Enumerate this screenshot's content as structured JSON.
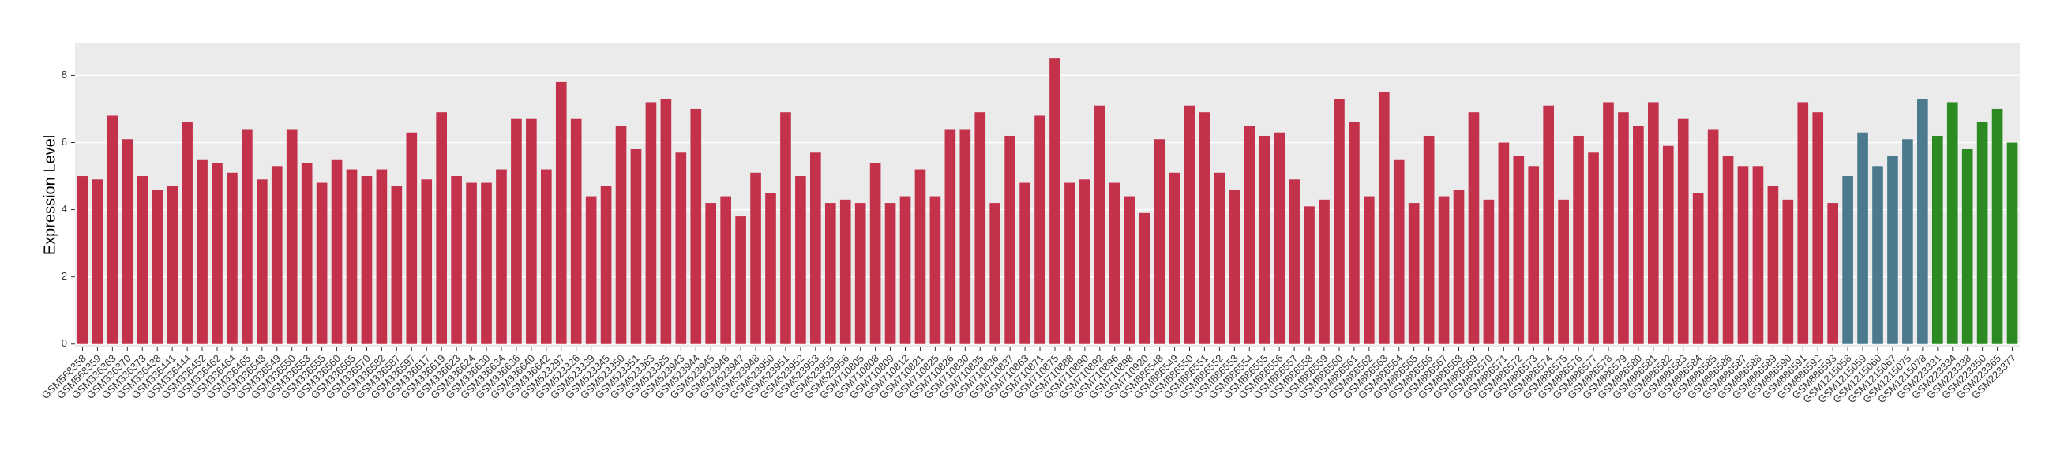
{
  "chart_data": {
    "type": "bar",
    "y_label": "Expression Level",
    "categories": [
      "GSM568358",
      "GSM568359",
      "GSM336363",
      "GSM336370",
      "GSM336373",
      "GSM336438",
      "GSM336441",
      "GSM336444",
      "GSM336452",
      "GSM336462",
      "GSM336464",
      "GSM336465",
      "GSM336548",
      "GSM336549",
      "GSM336550",
      "GSM336553",
      "GSM336555",
      "GSM336560",
      "GSM336565",
      "GSM336570",
      "GSM336582",
      "GSM336587",
      "GSM336597",
      "GSM336617",
      "GSM336619",
      "GSM336623",
      "GSM336624",
      "GSM336630",
      "GSM336634",
      "GSM336636",
      "GSM336640",
      "GSM336642",
      "GSM523297",
      "GSM523326",
      "GSM523339",
      "GSM523345",
      "GSM523350",
      "GSM523351",
      "GSM523363",
      "GSM523385",
      "GSM523943",
      "GSM523944",
      "GSM523945",
      "GSM523946",
      "GSM523947",
      "GSM523948",
      "GSM523950",
      "GSM523951",
      "GSM523952",
      "GSM523953",
      "GSM523955",
      "GSM523956",
      "GSM710805",
      "GSM710808",
      "GSM710809",
      "GSM710812",
      "GSM710821",
      "GSM710825",
      "GSM710826",
      "GSM710830",
      "GSM710835",
      "GSM710836",
      "GSM710837",
      "GSM710863",
      "GSM710871",
      "GSM710875",
      "GSM710888",
      "GSM710890",
      "GSM710892",
      "GSM710896",
      "GSM710898",
      "GSM710920",
      "GSM886548",
      "GSM886549",
      "GSM886550",
      "GSM886551",
      "GSM886552",
      "GSM886553",
      "GSM886554",
      "GSM886555",
      "GSM886556",
      "GSM886557",
      "GSM886558",
      "GSM886559",
      "GSM886560",
      "GSM886561",
      "GSM886562",
      "GSM886563",
      "GSM886564",
      "GSM886565",
      "GSM886566",
      "GSM886567",
      "GSM886568",
      "GSM886569",
      "GSM886570",
      "GSM886571",
      "GSM886572",
      "GSM886573",
      "GSM886574",
      "GSM886575",
      "GSM886576",
      "GSM886577",
      "GSM886578",
      "GSM886579",
      "GSM886580",
      "GSM886581",
      "GSM886582",
      "GSM886583",
      "GSM886584",
      "GSM886585",
      "GSM886586",
      "GSM886587",
      "GSM886588",
      "GSM886589",
      "GSM886590",
      "GSM886591",
      "GSM886592",
      "GSM886593",
      "GSM1215058",
      "GSM1215059",
      "GSM1215060",
      "GSM1215067",
      "GSM1215075",
      "GSM1215078",
      "GSM223331",
      "GSM223334",
      "GSM223338",
      "GSM223350",
      "GSM223365",
      "GSM223377"
    ],
    "values": [
      5.0,
      4.9,
      6.8,
      6.1,
      5.0,
      4.6,
      4.7,
      6.6,
      5.5,
      5.4,
      5.1,
      6.4,
      4.9,
      5.3,
      6.4,
      5.4,
      4.8,
      5.5,
      5.2,
      5.0,
      5.2,
      4.7,
      6.3,
      4.9,
      6.9,
      5.0,
      4.8,
      4.8,
      5.2,
      6.7,
      6.7,
      5.2,
      7.8,
      6.7,
      4.4,
      4.7,
      6.5,
      5.8,
      7.2,
      7.3,
      5.7,
      7.0,
      4.2,
      4.4,
      3.8,
      5.1,
      4.5,
      6.9,
      5.0,
      5.7,
      4.2,
      4.3,
      4.2,
      5.4,
      4.2,
      4.4,
      5.2,
      4.4,
      6.4,
      6.4,
      6.9,
      4.2,
      6.2,
      4.8,
      6.8,
      8.5,
      4.8,
      4.9,
      7.1,
      4.8,
      4.4,
      3.9,
      6.1,
      5.1,
      7.1,
      6.9,
      5.1,
      4.6,
      6.5,
      6.2,
      6.3,
      4.9,
      4.1,
      4.3,
      7.3,
      6.6,
      4.4,
      7.5,
      5.5,
      4.2,
      6.2,
      4.4,
      4.6,
      6.9,
      4.3,
      6.0,
      5.6,
      5.3,
      7.1,
      4.3,
      6.2,
      5.7,
      7.2,
      6.9,
      6.5,
      7.2,
      5.9,
      6.7,
      4.5,
      6.4,
      5.6,
      5.3,
      5.3,
      4.7,
      4.3,
      7.2,
      6.9,
      4.2,
      5.0,
      6.3,
      5.3,
      5.6,
      6.1,
      7.3,
      6.2,
      7.2,
      5.8,
      6.6,
      7.0,
      6.0
    ],
    "colors": [
      "#c3314b",
      "#c3314b",
      "#c3314b",
      "#c3314b",
      "#c3314b",
      "#c3314b",
      "#c3314b",
      "#c3314b",
      "#c3314b",
      "#c3314b",
      "#c3314b",
      "#c3314b",
      "#c3314b",
      "#c3314b",
      "#c3314b",
      "#c3314b",
      "#c3314b",
      "#c3314b",
      "#c3314b",
      "#c3314b",
      "#c3314b",
      "#c3314b",
      "#c3314b",
      "#c3314b",
      "#c3314b",
      "#c3314b",
      "#c3314b",
      "#c3314b",
      "#c3314b",
      "#c3314b",
      "#c3314b",
      "#c3314b",
      "#c3314b",
      "#c3314b",
      "#c3314b",
      "#c3314b",
      "#c3314b",
      "#c3314b",
      "#c3314b",
      "#c3314b",
      "#c3314b",
      "#c3314b",
      "#c3314b",
      "#c3314b",
      "#c3314b",
      "#c3314b",
      "#c3314b",
      "#c3314b",
      "#c3314b",
      "#c3314b",
      "#c3314b",
      "#c3314b",
      "#c3314b",
      "#c3314b",
      "#c3314b",
      "#c3314b",
      "#c3314b",
      "#c3314b",
      "#c3314b",
      "#c3314b",
      "#c3314b",
      "#c3314b",
      "#c3314b",
      "#c3314b",
      "#c3314b",
      "#c3314b",
      "#c3314b",
      "#c3314b",
      "#c3314b",
      "#c3314b",
      "#c3314b",
      "#c3314b",
      "#c3314b",
      "#c3314b",
      "#c3314b",
      "#c3314b",
      "#c3314b",
      "#c3314b",
      "#c3314b",
      "#c3314b",
      "#c3314b",
      "#c3314b",
      "#c3314b",
      "#c3314b",
      "#c3314b",
      "#c3314b",
      "#c3314b",
      "#c3314b",
      "#c3314b",
      "#c3314b",
      "#c3314b",
      "#c3314b",
      "#c3314b",
      "#c3314b",
      "#c3314b",
      "#c3314b",
      "#c3314b",
      "#c3314b",
      "#c3314b",
      "#c3314b",
      "#c3314b",
      "#c3314b",
      "#c3314b",
      "#c3314b",
      "#c3314b",
      "#c3314b",
      "#c3314b",
      "#c3314b",
      "#c3314b",
      "#c3314b",
      "#c3314b",
      "#c3314b",
      "#c3314b",
      "#c3314b",
      "#c3314b",
      "#c3314b",
      "#c3314b",
      "#c3314b",
      "#4b7a8e",
      "#4b7a8e",
      "#4b7a8e",
      "#4b7a8e",
      "#4b7a8e",
      "#4b7a8e",
      "#2b8a22",
      "#2b8a22",
      "#2b8a22",
      "#2b8a22",
      "#2b8a22",
      "#2b8a22"
    ],
    "ylim": [
      -0.1,
      8.95
    ],
    "yticks": [
      0,
      2,
      4,
      6,
      8
    ],
    "grid": true
  }
}
